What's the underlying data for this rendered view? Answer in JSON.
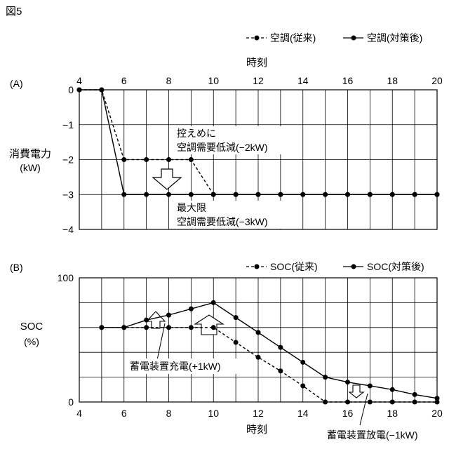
{
  "figure_label": "図5",
  "chart_data": [
    {
      "type": "line",
      "panel_label": "(A)",
      "xlabel": "時刻",
      "ylabel_lines": [
        "消費電力",
        "(kW)"
      ],
      "xlim": [
        4,
        20
      ],
      "ylim": [
        -4,
        0
      ],
      "xticks": [
        4,
        6,
        8,
        10,
        12,
        14,
        16,
        18,
        20
      ],
      "yticks": [
        0,
        -1,
        -2,
        -3,
        -4
      ],
      "grid": true,
      "legend_position": "top-right",
      "series": [
        {
          "name": "空調(従来)",
          "style": "dashed",
          "x": [
            4,
            5,
            6,
            7,
            8,
            9,
            10,
            11,
            12,
            13,
            14,
            15,
            16,
            17,
            18,
            19,
            20
          ],
          "y": [
            0,
            0,
            -2,
            -2,
            -2,
            -2,
            -3,
            -3,
            -3,
            -3,
            -3,
            -3,
            -3,
            -3,
            -3,
            -3,
            -3
          ]
        },
        {
          "name": "空調(対策後)",
          "style": "solid",
          "x": [
            4,
            5,
            6,
            7,
            8,
            9,
            10,
            11,
            12,
            13,
            14,
            15,
            16,
            17,
            18,
            19,
            20
          ],
          "y": [
            0,
            0,
            -3,
            -3,
            -3,
            -3,
            -3,
            -3,
            -3,
            -3,
            -3,
            -3,
            -3,
            -3,
            -3,
            -3,
            -3
          ]
        }
      ],
      "annotations": [
        {
          "id": "cap",
          "lines": [
            "控えめに",
            "空調需要低減(−2kW)"
          ]
        },
        {
          "id": "max",
          "lines": [
            "最大限",
            "空調需要低減(−3kW)"
          ]
        }
      ]
    },
    {
      "type": "line",
      "panel_label": "(B)",
      "xlabel": "時刻",
      "ylabel_lines": [
        "SOC",
        "(%)"
      ],
      "xlim": [
        4,
        20
      ],
      "ylim": [
        0,
        100
      ],
      "xticks": [
        4,
        6,
        8,
        10,
        12,
        14,
        16,
        18,
        20
      ],
      "yticks": [
        100,
        0
      ],
      "grid": true,
      "legend_position": "top-right",
      "series": [
        {
          "name": "SOC(従来)",
          "style": "dashed",
          "x": [
            5,
            6,
            7,
            8,
            9,
            10,
            11,
            12,
            13,
            14,
            15,
            16,
            17,
            18,
            19,
            20
          ],
          "y": [
            60,
            60,
            60,
            60,
            60,
            60,
            48,
            36,
            25,
            13,
            0,
            0,
            0,
            0,
            0,
            0
          ]
        },
        {
          "name": "SOC(対策後)",
          "style": "solid",
          "x": [
            5,
            6,
            7,
            8,
            9,
            10,
            11,
            12,
            13,
            14,
            15,
            16,
            17,
            18,
            19,
            20
          ],
          "y": [
            60,
            60,
            66,
            70,
            75,
            80,
            68,
            56,
            44,
            32,
            20,
            16,
            13,
            10,
            6,
            3
          ]
        }
      ],
      "annotations": [
        {
          "id": "charge",
          "lines": [
            "蓄電装置充電(+1kW)"
          ]
        },
        {
          "id": "discharge",
          "lines": [
            "蓄電装置放電(−1kW)"
          ]
        }
      ]
    }
  ]
}
